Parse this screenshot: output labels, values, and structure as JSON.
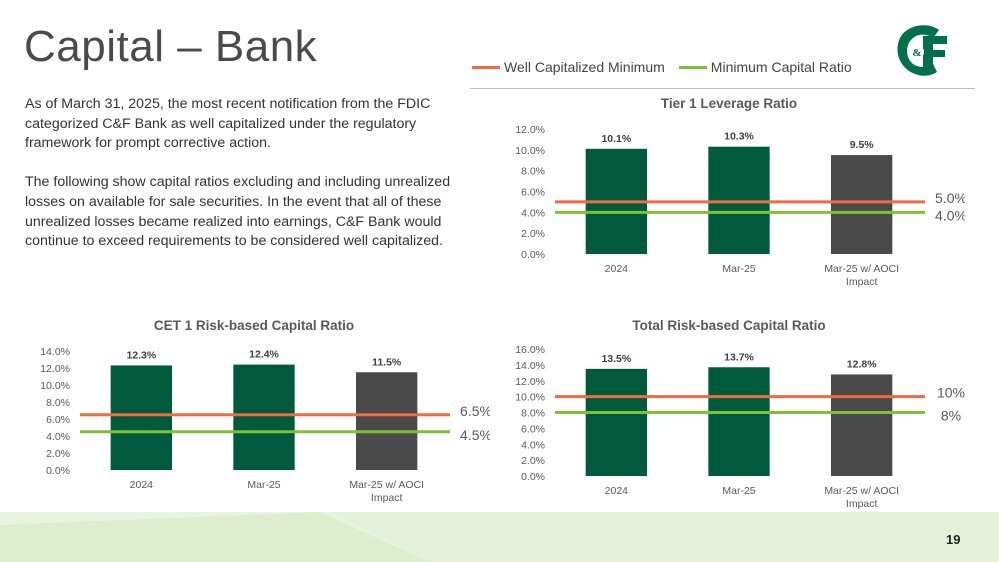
{
  "slide": {
    "title": "Capital – Bank",
    "page_number": "19",
    "paragraphs": [
      "As of March 31, 2025, the most recent notification from the FDIC categorized C&F Bank as well capitalized under the regulatory framework for prompt corrective action.",
      "The following show capital ratios excluding and including unrealized losses on available for sale securities. In the event that all of these unrealized losses became realized into earnings, C&F Bank would continue to exceed requirements to be considered well capitalized."
    ]
  },
  "legend": {
    "well_capitalized": "Well Capitalized Minimum",
    "minimum_capital": "Minimum Capital Ratio"
  },
  "colors": {
    "bar_green": "#005a3c",
    "bar_gray": "#4a4a4a",
    "well_line": "#ee6c3f",
    "min_line": "#7ec03b",
    "brand": "#00704a"
  },
  "chart_data": [
    {
      "id": "tier1",
      "type": "bar",
      "title": "Tier 1 Leverage Ratio",
      "categories": [
        "2024",
        "Mar-25",
        "Mar-25 w/ AOCI Impact"
      ],
      "values": [
        10.1,
        10.3,
        9.5
      ],
      "value_labels": [
        "10.1%",
        "10.3%",
        "9.5%"
      ],
      "y_ticks": [
        "0.0%",
        "2.0%",
        "4.0%",
        "6.0%",
        "8.0%",
        "10.0%",
        "12.0%"
      ],
      "ylim": [
        0,
        12
      ],
      "well_capitalized": 5.0,
      "minimum": 4.0,
      "well_label": "5.0%",
      "min_label": "4.0%"
    },
    {
      "id": "cet1",
      "type": "bar",
      "title": "CET 1 Risk-based Capital Ratio",
      "categories": [
        "2024",
        "Mar-25",
        "Mar-25 w/ AOCI Impact"
      ],
      "values": [
        12.3,
        12.4,
        11.5
      ],
      "value_labels": [
        "12.3%",
        "12.4%",
        "11.5%"
      ],
      "y_ticks": [
        "0.0%",
        "2.0%",
        "4.0%",
        "6.0%",
        "8.0%",
        "10.0%",
        "12.0%",
        "14.0%"
      ],
      "ylim": [
        0,
        14
      ],
      "well_capitalized": 6.5,
      "minimum": 4.5,
      "well_label": "6.5%",
      "min_label": "4.5%"
    },
    {
      "id": "total",
      "type": "bar",
      "title": "Total Risk-based Capital Ratio",
      "categories": [
        "2024",
        "Mar-25",
        "Mar-25 w/ AOCI Impact"
      ],
      "values": [
        13.5,
        13.7,
        12.8
      ],
      "value_labels": [
        "13.5%",
        "13.7%",
        "12.8%"
      ],
      "y_ticks": [
        "0.0%",
        "2.0%",
        "4.0%",
        "6.0%",
        "8.0%",
        "10.0%",
        "12.0%",
        "14.0%",
        "16.0%"
      ],
      "ylim": [
        0,
        16
      ],
      "well_capitalized": 10,
      "minimum": 8,
      "well_label": "10%",
      "min_label": "8%"
    }
  ]
}
